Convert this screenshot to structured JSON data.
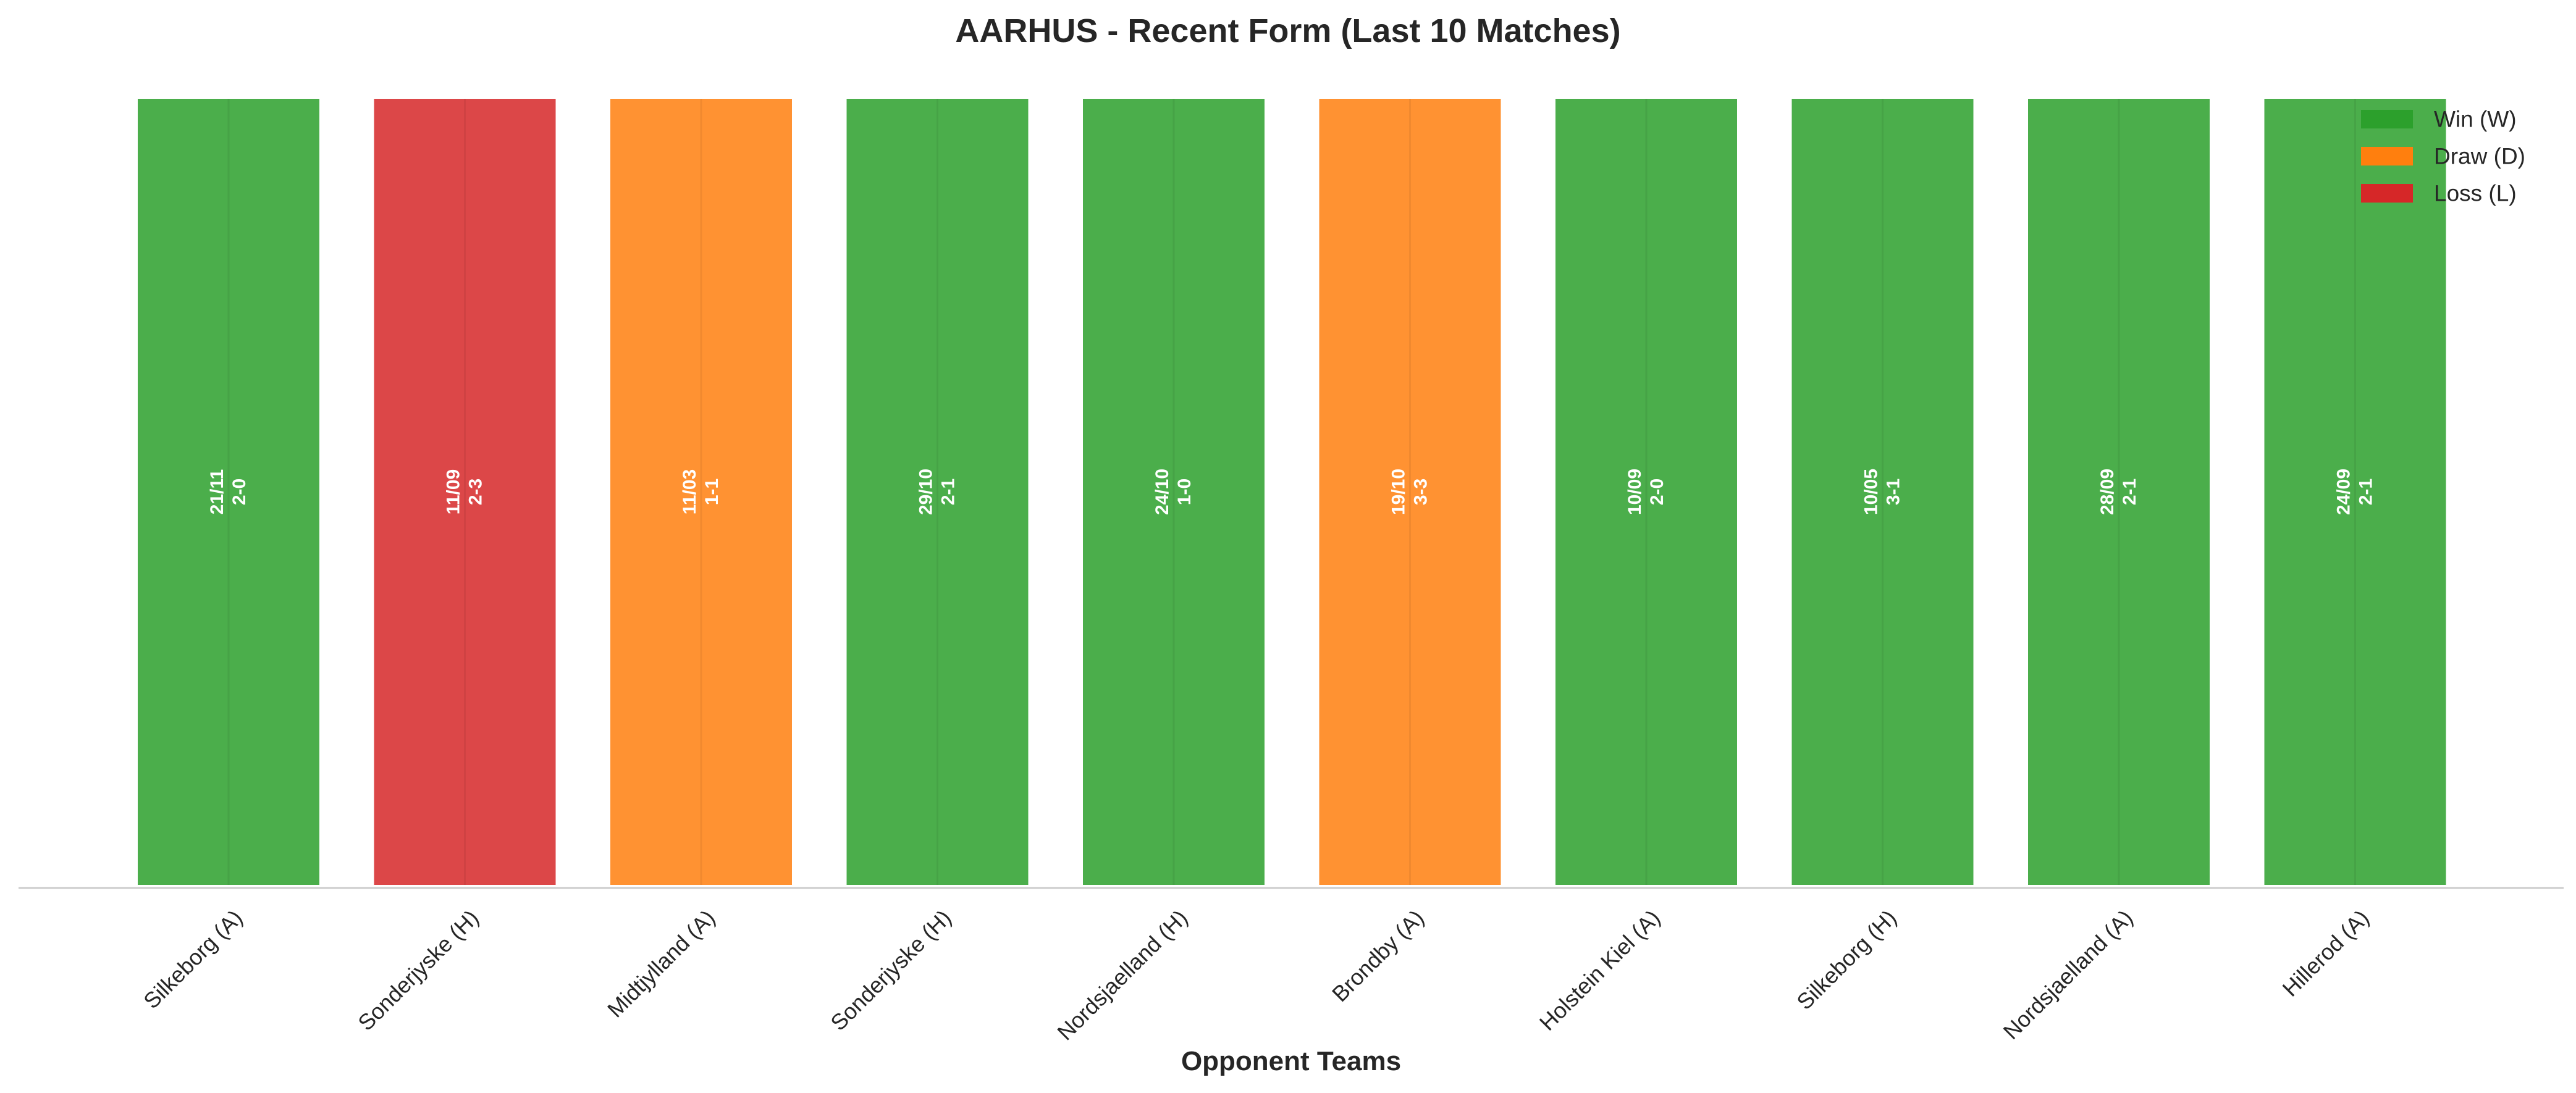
{
  "chart_data": {
    "type": "bar",
    "title": "AARHUS - Recent Form (Last 10 Matches)",
    "xlabel": "Opponent Teams",
    "ylabel": "",
    "ylim": [
      0,
      1
    ],
    "grid": false,
    "legend_placement": "top-right",
    "categories": [
      "Silkeborg (A)",
      "Sonderjyske (H)",
      "Midtjylland (A)",
      "Sonderjyske (H)",
      "Nordsjaelland (H)",
      "Brondby (A)",
      "Holstein Kiel (A)",
      "Silkeborg (H)",
      "Nordsjaelland (A)",
      "Hillerod (A)"
    ],
    "values": [
      1,
      1,
      1,
      1,
      1,
      1,
      1,
      1,
      1,
      1
    ],
    "results": [
      "W",
      "L",
      "D",
      "W",
      "W",
      "D",
      "W",
      "W",
      "W",
      "W"
    ],
    "dates": [
      "21/11",
      "11/09",
      "11/03",
      "29/10",
      "24/10",
      "19/10",
      "10/09",
      "10/05",
      "28/09",
      "24/09"
    ],
    "scores": [
      "2-0",
      "2-3",
      "1-1",
      "2-1",
      "1-0",
      "3-3",
      "2-0",
      "3-1",
      "2-1",
      "2-1"
    ],
    "legend": [
      {
        "key": "W",
        "label": "Win (W)",
        "color": "#2ca02c"
      },
      {
        "key": "D",
        "label": "Draw (D)",
        "color": "#ff7f0e"
      },
      {
        "key": "L",
        "label": "Loss (L)",
        "color": "#d62728"
      }
    ],
    "colors": {
      "W": "#2ca02c",
      "D": "#ff7f0e",
      "L": "#d62728"
    }
  }
}
